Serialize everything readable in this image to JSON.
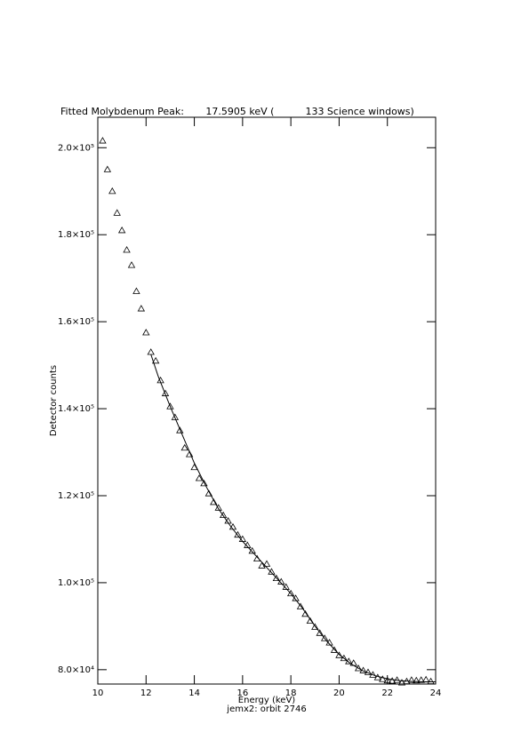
{
  "chart_data": {
    "type": "scatter",
    "title": "Fitted Molybdenum Peak:       17.5905 keV (          133 Science windows)",
    "x_label": "Energy (keV)",
    "subtitle": "jemx2: orbit 2746",
    "y_label": "Detector counts",
    "xlim": [
      10,
      24
    ],
    "ylim": [
      76700,
      207000
    ],
    "xticks": [
      10,
      12,
      14,
      16,
      18,
      20,
      22,
      24
    ],
    "yticks": [
      {
        "value": 80000,
        "label": "8.0×10⁴"
      },
      {
        "value": 100000,
        "label": "1.0×10⁵"
      },
      {
        "value": 120000,
        "label": "1.2×10⁵"
      },
      {
        "value": 140000,
        "label": "1.4×10⁵"
      },
      {
        "value": 160000,
        "label": "1.6×10⁵"
      },
      {
        "value": 180000,
        "label": "1.8×10⁵"
      },
      {
        "value": 200000,
        "label": "2.0×10⁵"
      }
    ],
    "grid": false,
    "series": [
      {
        "marker": "triangle",
        "color": "#000000",
        "x": [
          10.2,
          10.4,
          10.6,
          10.8,
          11.0,
          11.2,
          11.4,
          11.6,
          11.8,
          12.0,
          12.2,
          12.4,
          12.6,
          12.8,
          13.0,
          13.2,
          13.4,
          13.6,
          13.8,
          14.0,
          14.2,
          14.4,
          14.6,
          14.8,
          15.0,
          15.2,
          15.4,
          15.6,
          15.8,
          16.0,
          16.2,
          16.4,
          16.6,
          16.8,
          17.0,
          17.2,
          17.4,
          17.6,
          17.8,
          18.0,
          18.2,
          18.4,
          18.6,
          18.8,
          19.0,
          19.2,
          19.4,
          19.6,
          19.8,
          20.0,
          20.2,
          20.4,
          20.6,
          20.8,
          21.0,
          21.2,
          21.4,
          21.6,
          21.8,
          22.0,
          22.2,
          22.4,
          22.6,
          22.8,
          23.0,
          23.2,
          23.4,
          23.6,
          23.8
        ],
        "values": [
          201600,
          195000,
          190000,
          185000,
          181000,
          176500,
          173000,
          167000,
          163000,
          157500,
          153000,
          151000,
          146500,
          143500,
          140500,
          138000,
          135000,
          131000,
          129500,
          126500,
          124000,
          122800,
          120500,
          118500,
          117200,
          115500,
          114200,
          112800,
          111000,
          110000,
          108600,
          107300,
          105500,
          103900,
          104300,
          102500,
          101000,
          100200,
          99000,
          97500,
          96400,
          94500,
          92800,
          91200,
          89800,
          88400,
          87200,
          86200,
          84500,
          83300,
          82600,
          81900,
          81500,
          80300,
          79800,
          79400,
          78800,
          78200,
          77800,
          77500,
          77400,
          77600,
          77000,
          77300,
          77600,
          77500,
          77600,
          77700,
          77300
        ]
      },
      {
        "marker": "line",
        "color": "#000000",
        "x": [
          12.2,
          12.5,
          13.0,
          13.5,
          14.0,
          14.5,
          15.0,
          15.5,
          16.0,
          16.5,
          17.0,
          17.5,
          18.0,
          18.5,
          19.0,
          19.5,
          20.0,
          20.5,
          21.0,
          21.5,
          22.0,
          22.5,
          23.0,
          23.5,
          24.0
        ],
        "values": [
          152500,
          147500,
          140500,
          134000,
          127500,
          122000,
          117000,
          113000,
          109500,
          106500,
          103500,
          100500,
          97500,
          94000,
          90000,
          86500,
          83500,
          81300,
          79700,
          78600,
          77900,
          77500,
          77300,
          77200,
          77200
        ]
      }
    ]
  }
}
